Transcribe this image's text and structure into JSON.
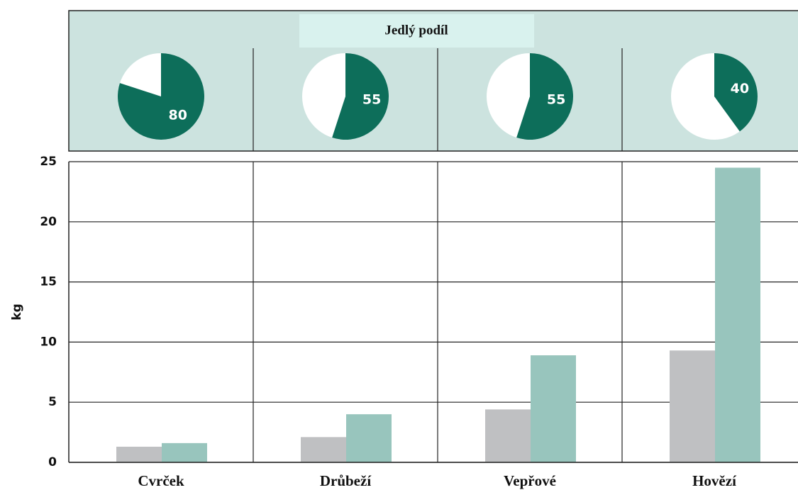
{
  "chart_data": [
    {
      "type": "pie",
      "title": "Jedlý podíl",
      "values": [
        80,
        55,
        55,
        40
      ],
      "color": "#0d6e5a"
    },
    {
      "type": "bar",
      "ylabel": "kg",
      "categories": [
        "Cvrček",
        "Drůbeží",
        "Vepřové",
        "Hovězí"
      ],
      "series": [
        {
          "color": "#bfc0c2",
          "values": [
            1.3,
            2.1,
            4.4,
            9.3
          ]
        },
        {
          "color": "#98c5bd",
          "values": [
            1.6,
            4.0,
            8.9,
            24.5
          ]
        }
      ],
      "ylim": [
        0,
        25
      ],
      "yticks": [
        0,
        5,
        10,
        15,
        20,
        25
      ],
      "grid": true
    }
  ]
}
